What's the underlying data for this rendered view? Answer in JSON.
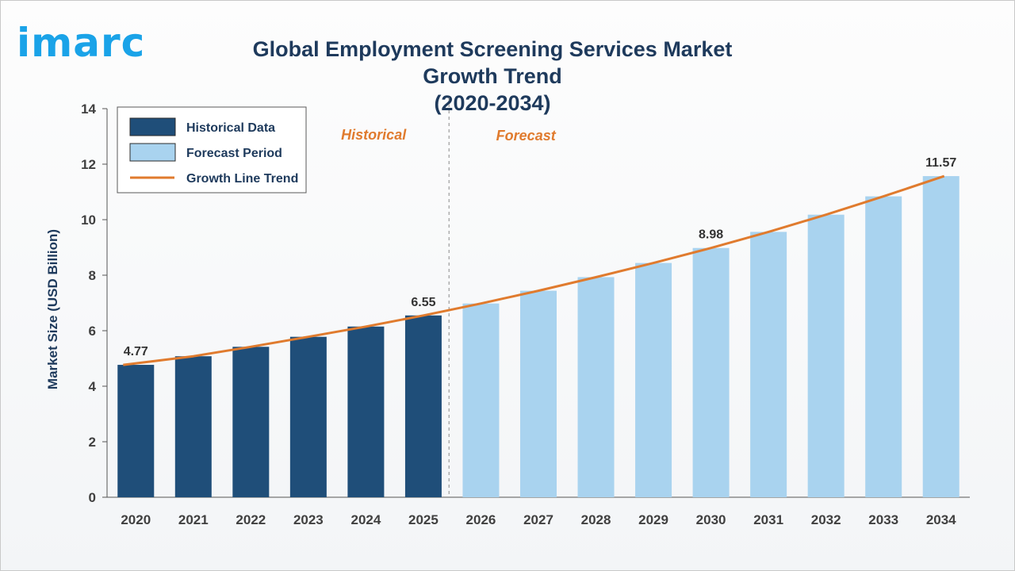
{
  "brand": {
    "logo_text": "imarc",
    "logo_color": "#1aa3e8"
  },
  "chart_data": {
    "type": "bar",
    "title": "Global Employment Screening Services Market Growth Trend",
    "subtitle": "(2020-2034)",
    "ylabel": "Market Size (USD Billion)",
    "xlabel": "",
    "ylim": [
      0,
      14
    ],
    "yticks": [
      0,
      2,
      4,
      6,
      8,
      10,
      12,
      14
    ],
    "categories": [
      "2020",
      "2021",
      "2022",
      "2023",
      "2024",
      "2025",
      "2026",
      "2027",
      "2028",
      "2029",
      "2030",
      "2031",
      "2032",
      "2033",
      "2034"
    ],
    "series": [
      {
        "name": "Historical Data",
        "color": "#1f4e79",
        "values": [
          4.77,
          5.08,
          5.42,
          5.78,
          6.15,
          6.55,
          null,
          null,
          null,
          null,
          null,
          null,
          null,
          null,
          null
        ]
      },
      {
        "name": "Forecast Period",
        "color": "#a9d3ef",
        "values": [
          null,
          null,
          null,
          null,
          null,
          null,
          6.98,
          7.44,
          7.93,
          8.44,
          8.98,
          9.56,
          10.18,
          10.84,
          11.57
        ]
      },
      {
        "name": "Growth Line Trend",
        "type": "line",
        "color": "#e07b2e",
        "values": [
          4.77,
          5.08,
          5.42,
          5.78,
          6.15,
          6.55,
          6.98,
          7.44,
          7.93,
          8.44,
          8.98,
          9.56,
          10.18,
          10.84,
          11.57
        ]
      }
    ],
    "data_labels": [
      {
        "category": "2020",
        "text": "4.77"
      },
      {
        "category": "2025",
        "text": "6.55"
      },
      {
        "category": "2030",
        "text": "8.98"
      },
      {
        "category": "2034",
        "text": "11.57"
      }
    ],
    "annotations": [
      {
        "text": "Historical",
        "color": "#e07b2e"
      },
      {
        "text": "Forecast",
        "color": "#e07b2e"
      }
    ],
    "divider_after_category": "2025",
    "legend_position": "top-left",
    "grid": false
  }
}
